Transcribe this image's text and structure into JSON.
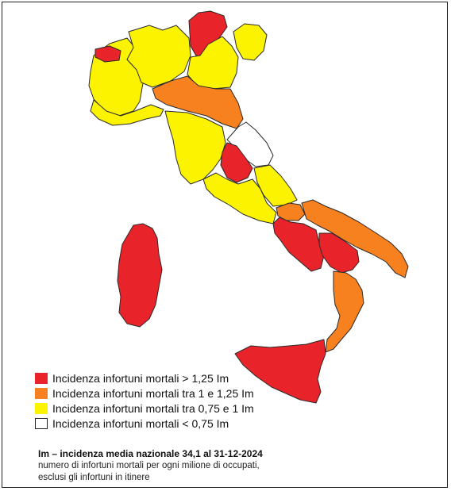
{
  "colors": {
    "very_high": "#e8242a",
    "high": "#f7801f",
    "medium": "#fcf300",
    "low": "#ffffff",
    "border": "#2a2a2a"
  },
  "legend": {
    "items": [
      {
        "color_key": "very_high",
        "label": "Incidenza infortuni mortali > 1,25 Im"
      },
      {
        "color_key": "high",
        "label": "Incidenza infortuni mortali tra 1 e 1,25 Im"
      },
      {
        "color_key": "medium",
        "label": "Incidenza infortuni mortali tra 0,75 e 1 Im"
      },
      {
        "color_key": "low",
        "label": "Incidenza infortuni mortali < 0,75 Im"
      }
    ]
  },
  "note": {
    "title": "Im – incidenza media nazionale 34,1 al 31-12-2024",
    "line1": "numero di infortuni mortali per ogni milione di occupati,",
    "line2": "esclusi gli infortuni in itinere"
  },
  "regions": [
    {
      "name": "valle-daosta",
      "class": "very_high"
    },
    {
      "name": "piemonte",
      "class": "medium"
    },
    {
      "name": "lombardia",
      "class": "medium"
    },
    {
      "name": "trentino-alto-adige",
      "class": "very_high"
    },
    {
      "name": "veneto",
      "class": "medium"
    },
    {
      "name": "friuli-venezia-giulia",
      "class": "medium"
    },
    {
      "name": "liguria",
      "class": "medium"
    },
    {
      "name": "emilia-romagna",
      "class": "high"
    },
    {
      "name": "toscana",
      "class": "medium"
    },
    {
      "name": "marche",
      "class": "low"
    },
    {
      "name": "umbria",
      "class": "very_high"
    },
    {
      "name": "lazio",
      "class": "medium"
    },
    {
      "name": "abruzzo",
      "class": "medium"
    },
    {
      "name": "molise",
      "class": "high"
    },
    {
      "name": "campania",
      "class": "very_high"
    },
    {
      "name": "puglia",
      "class": "high"
    },
    {
      "name": "basilicata",
      "class": "very_high"
    },
    {
      "name": "calabria",
      "class": "high"
    },
    {
      "name": "sicilia",
      "class": "very_high"
    },
    {
      "name": "sardegna",
      "class": "very_high"
    }
  ]
}
